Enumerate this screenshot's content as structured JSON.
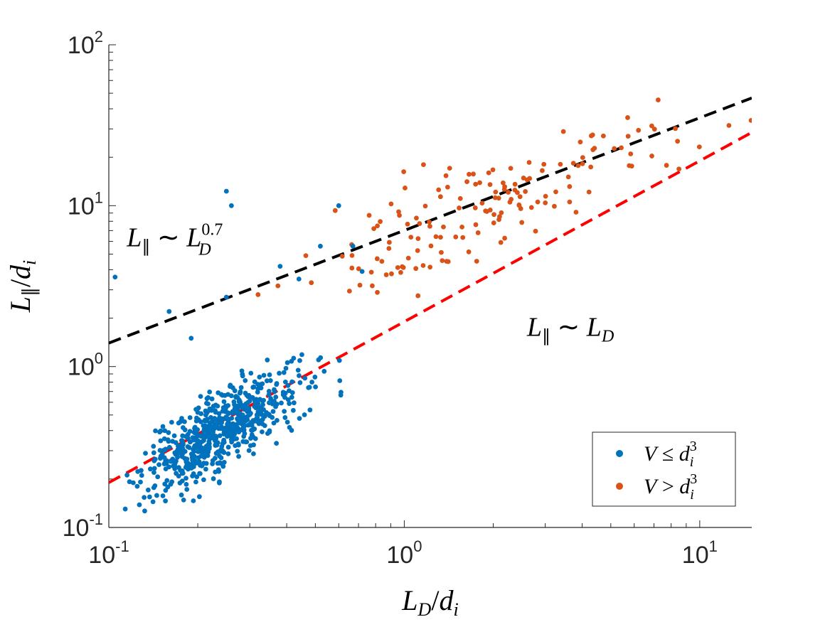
{
  "chart_data": {
    "type": "scatter",
    "xscale": "log",
    "yscale": "log",
    "xlim": [
      0.1,
      15
    ],
    "ylim": [
      0.1,
      100
    ],
    "xticks": [
      {
        "base": "10",
        "exp": "-1"
      },
      {
        "base": "10",
        "exp": "0"
      },
      {
        "base": "10",
        "exp": "1"
      }
    ],
    "yticks": [
      {
        "base": "10",
        "exp": "-1"
      },
      {
        "base": "10",
        "exp": "0"
      },
      {
        "base": "10",
        "exp": "1"
      },
      {
        "base": "10",
        "exp": "2"
      }
    ],
    "xlabel": {
      "main": "L",
      "sub": "D",
      "sep": "/",
      "den": "d",
      "den_sub": "i"
    },
    "ylabel": {
      "main": "L",
      "sub": "∥",
      "sep": "/",
      "den": "d",
      "den_sub": "i"
    },
    "grid": false,
    "legend_position": "bottom-right",
    "series": [
      {
        "name": "V ≤ d_i^3",
        "color": "#0072BD",
        "legend": {
          "lhs": "V",
          "op": "≤",
          "rhs": "d",
          "rhs_sub": "i",
          "rhs_sup": "3"
        },
        "generator": {
          "kind": "cloud",
          "count": 640,
          "seed": 7,
          "center_log10x": -0.62,
          "center_log10y": -0.4,
          "slope": 1.0,
          "sigma_x": 0.13,
          "sigma_y": 0.14,
          "scatter": 0.12
        }
      },
      {
        "name": "V > d_i^3",
        "color": "#D95319",
        "legend": {
          "lhs": "V",
          "op": ">",
          "rhs": "d",
          "rhs_sub": "i",
          "rhs_sup": "3"
        },
        "generator": {
          "kind": "cloud",
          "count": 160,
          "seed": 19,
          "center_log10x": 0.3,
          "center_log10y": 1.0,
          "slope": 0.7,
          "sigma_x": 0.32,
          "sigma_y": 0.2,
          "scatter": 0.16
        }
      }
    ],
    "points_outliers": [
      [
        0.105,
        3.6
      ],
      [
        0.25,
        12.3
      ],
      [
        0.26,
        10.0
      ],
      [
        0.6,
        10.0
      ],
      [
        0.52,
        5.6
      ],
      [
        0.16,
        2.2
      ],
      [
        0.38,
        4.2
      ],
      [
        0.44,
        3.5
      ],
      [
        0.25,
        2.7
      ],
      [
        0.19,
        1.5
      ],
      [
        0.67,
        5.6
      ],
      [
        0.72,
        3.9
      ]
    ],
    "fits": [
      {
        "name": "L_par ~ L_D^0.7",
        "color": "#000000",
        "dash": true,
        "exponent": 0.7,
        "x_at": 0.1,
        "y_at": 1.4
      },
      {
        "name": "L_par ~ L_D",
        "color": "#FF0000",
        "dash": true,
        "exponent": 1.0,
        "x_at": 0.1,
        "y_at": 0.19
      }
    ],
    "annotations": [
      {
        "text_main": "L",
        "text_sub": "∥",
        "op": "∼",
        "rhs": "L",
        "rhs_sub": "D",
        "rhs_sup": "0.7",
        "x": 0.115,
        "y": 5.6
      },
      {
        "text_main": "L",
        "text_sub": "∥",
        "op": "∼",
        "rhs": "L",
        "rhs_sub": "D",
        "rhs_sup": "",
        "x": 2.6,
        "y": 1.55
      }
    ]
  }
}
